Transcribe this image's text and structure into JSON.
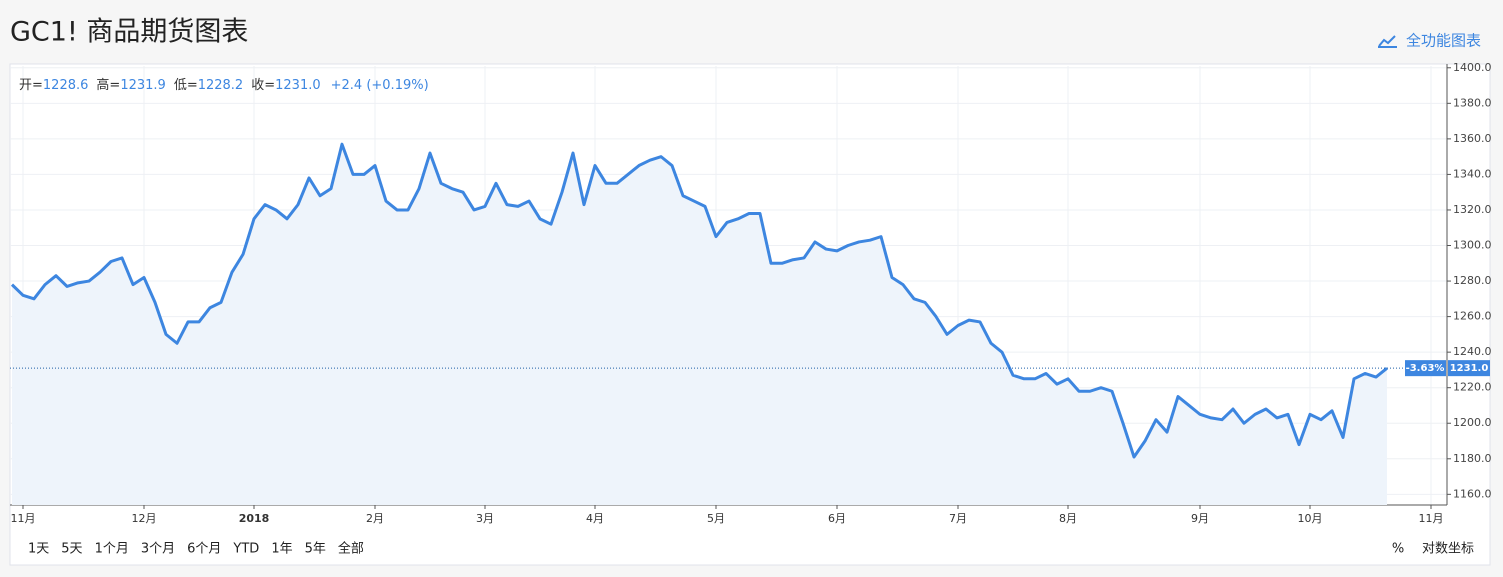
{
  "header": {
    "title": "GC1! 商品期货图表",
    "link": "全功能图表"
  },
  "chart_data": {
    "type": "line",
    "legend": [
      {
        "label": "开=",
        "value": "1228.6"
      },
      {
        "label": "高=",
        "value": "1231.9"
      },
      {
        "label": "低=",
        "value": "1228.2"
      },
      {
        "label": "收=",
        "value": "1231.0"
      }
    ],
    "change": "+2.4 (+0.19%)",
    "color": "#3d86e0",
    "fill": "#eef4fb",
    "categories": [
      null,
      "11月",
      null,
      null,
      null,
      null,
      null,
      null,
      null,
      null,
      null,
      null,
      "12月",
      null,
      null,
      null,
      null,
      null,
      null,
      null,
      null,
      null,
      "2018",
      null,
      null,
      null,
      null,
      null,
      null,
      null,
      null,
      null,
      null,
      "2月",
      null,
      null,
      null,
      null,
      null,
      null,
      null,
      null,
      null,
      "3月",
      null,
      null,
      null,
      null,
      null,
      null,
      null,
      null,
      null,
      "4月",
      null,
      null,
      null,
      null,
      null,
      null,
      null,
      null,
      null,
      null,
      "5月",
      null,
      null,
      null,
      null,
      null,
      null,
      null,
      null,
      null,
      null,
      "6月",
      null,
      null,
      null,
      null,
      null,
      null,
      null,
      null,
      null,
      null,
      "7月",
      null,
      null,
      null,
      null,
      null,
      null,
      null,
      null,
      null,
      "8月",
      null,
      null,
      null,
      null,
      null,
      null,
      null,
      null,
      null,
      null,
      null,
      "9月",
      null,
      null,
      null,
      null,
      null,
      null,
      null,
      null,
      null,
      "10月",
      null,
      null,
      null,
      null,
      null,
      null,
      null,
      null,
      null,
      null,
      "11月"
    ],
    "values": [
      1278,
      1272,
      1270,
      1278,
      1283,
      1277,
      1279,
      1280,
      1285,
      1291,
      1293,
      1278,
      1282,
      1268,
      1250,
      1245,
      1257,
      1257,
      1265,
      1268,
      1285,
      1295,
      1315,
      1323,
      1320,
      1315,
      1323,
      1338,
      1328,
      1332,
      1357,
      1340,
      1340,
      1345,
      1325,
      1320,
      1320,
      1332,
      1352,
      1335,
      1332,
      1330,
      1320,
      1322,
      1335,
      1323,
      1322,
      1325,
      1315,
      1312,
      1330,
      1352,
      1323,
      1345,
      1335,
      1335,
      1340,
      1345,
      1348,
      1350,
      1345,
      1328,
      1325,
      1322,
      1305,
      1313,
      1315,
      1318,
      1318,
      1290,
      1290,
      1292,
      1293,
      1302,
      1298,
      1297,
      1300,
      1302,
      1303,
      1305,
      1282,
      1278,
      1270,
      1268,
      1260,
      1250,
      1255,
      1258,
      1257,
      1245,
      1240,
      1227,
      1225,
      1225,
      1228,
      1222,
      1225,
      1218,
      1218,
      1220,
      1218,
      1200,
      1181,
      1190,
      1202,
      1195,
      1215,
      1210,
      1205,
      1203,
      1202,
      1208,
      1200,
      1205,
      1208,
      1203,
      1205,
      1188,
      1205,
      1202,
      1207,
      1192,
      1225,
      1228,
      1226,
      1231,
      null,
      null,
      null,
      null
    ],
    "last_price": {
      "value": 1231,
      "label": "1231.0",
      "change": "-3.63%"
    },
    "ylim": [
      1154,
      1401
    ],
    "yticks": [
      {
        "value": 1160,
        "label": "1160.0"
      },
      {
        "value": 1180,
        "label": "1180.0"
      },
      {
        "value": 1200,
        "label": "1200.0"
      },
      {
        "value": 1220,
        "label": "1220.0"
      },
      {
        "value": 1240,
        "label": "1240.0"
      },
      {
        "value": 1260,
        "label": "1260.0"
      },
      {
        "value": 1280,
        "label": "1280.0"
      },
      {
        "value": 1300,
        "label": "1300.0"
      },
      {
        "value": 1320,
        "label": "1320.0"
      },
      {
        "value": 1340,
        "label": "1340.0"
      },
      {
        "value": 1360,
        "label": "1360.0"
      },
      {
        "value": 1380,
        "label": "1380.0"
      },
      {
        "value": 1400,
        "label": "1400.0"
      }
    ],
    "grid": true
  },
  "range_buttons": [
    "1天",
    "5天",
    "1个月",
    "3个月",
    "6个月",
    "YTD",
    "1年",
    "5年",
    "全部"
  ],
  "scale_options": [
    "%",
    "对数坐标"
  ]
}
